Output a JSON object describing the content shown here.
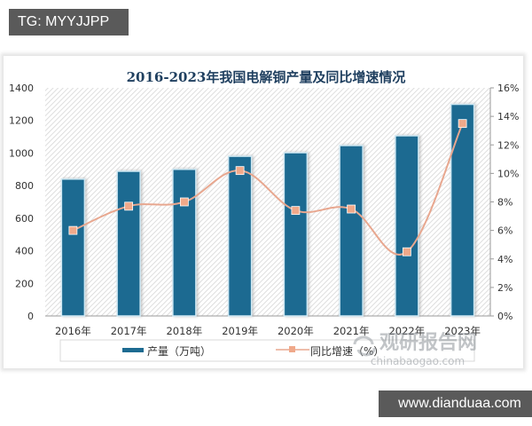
{
  "overlays": {
    "top_tag": "TG: MYYJJPP",
    "bottom_tag": "www.dianduaa.com",
    "watermark_cn": "观研报告网",
    "watermark_url": "chinabaogao.com"
  },
  "colors": {
    "bar": "#1d6b91",
    "bar_outline": "#cfe8f3",
    "line": "#e8a78f",
    "marker": "#f0a98a",
    "title": "#1f3f5f",
    "axis_text": "#333333"
  },
  "chart_data": {
    "type": "bar+line",
    "title": "2016-2023年我国电解铜产量及同比增速情况",
    "categories": [
      "2016年",
      "2017年",
      "2018年",
      "2019年",
      "2020年",
      "2021年",
      "2022年",
      "2023年"
    ],
    "series": [
      {
        "name": "产量（万吨）",
        "type": "bar",
        "axis": "left",
        "values": [
          840,
          888,
          900,
          980,
          1002,
          1046,
          1106,
          1299
        ]
      },
      {
        "name": "同比增速（%）",
        "type": "line",
        "axis": "right",
        "values": [
          6.0,
          7.7,
          8.0,
          10.2,
          7.4,
          7.5,
          4.5,
          13.5
        ]
      }
    ],
    "left_axis": {
      "ylim": [
        0,
        1400
      ],
      "ticks": [
        "0",
        "200",
        "400",
        "600",
        "800",
        "1000",
        "1200",
        "1400"
      ]
    },
    "right_axis": {
      "ylim": [
        0,
        16
      ],
      "ticks": [
        "0%",
        "2%",
        "4%",
        "6%",
        "8%",
        "10%",
        "12%",
        "14%",
        "16%"
      ]
    },
    "xlabel": "",
    "ylabel": "",
    "grid": false,
    "background": "diagonal-hatch",
    "legend": {
      "position": "bottom",
      "entries": [
        "产量（万吨）",
        "同比增速（%）"
      ]
    }
  }
}
